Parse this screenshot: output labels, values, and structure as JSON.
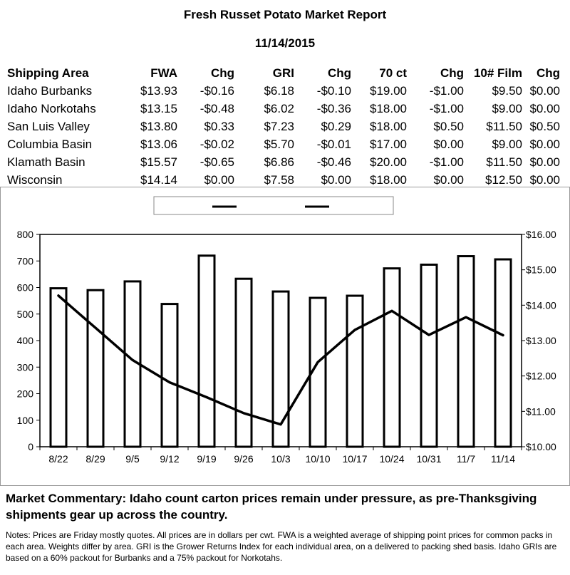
{
  "report": {
    "title": "Fresh Russet Potato Market Report",
    "date": "11/14/2015"
  },
  "table": {
    "headers": [
      "Shipping Area",
      "FWA",
      "Chg",
      "GRI",
      "Chg",
      "70 ct",
      "Chg",
      "10# Film",
      "Chg"
    ],
    "rows": [
      [
        "Idaho Burbanks",
        "$13.93",
        "-$0.16",
        "$6.18",
        "-$0.10",
        "$19.00",
        "-$1.00",
        "$9.50",
        "$0.00"
      ],
      [
        "Idaho Norkotahs",
        "$13.15",
        "-$0.48",
        "$6.02",
        "-$0.36",
        "$18.00",
        "-$1.00",
        "$9.00",
        "$0.00"
      ],
      [
        "San Luis Valley",
        "$13.80",
        "$0.33",
        "$7.23",
        "$0.29",
        "$18.00",
        "$0.50",
        "$11.50",
        "$0.50"
      ],
      [
        "Columbia Basin",
        "$13.06",
        "-$0.02",
        "$5.70",
        "-$0.01",
        "$17.00",
        "$0.00",
        "$9.00",
        "$0.00"
      ],
      [
        "Klamath Basin",
        "$15.57",
        "-$0.65",
        "$6.86",
        "-$0.46",
        "$20.00",
        "-$1.00",
        "$11.50",
        "$0.00"
      ],
      [
        "Wisconsin",
        "$14.14",
        "$0.00",
        "$7.58",
        "$0.00",
        "$18.00",
        "$0.00",
        "$12.50",
        "$0.00"
      ]
    ]
  },
  "chart_data": {
    "type": "bar",
    "title": "",
    "xlabel": "",
    "ylabel": "",
    "categories": [
      "8/22",
      "8/29",
      "9/5",
      "9/12",
      "9/19",
      "9/26",
      "10/3",
      "10/10",
      "10/17",
      "10/24",
      "10/31",
      "11/7",
      "11/14"
    ],
    "series": [
      {
        "type": "bar",
        "axis": "left",
        "values": [
          597,
          590,
          623,
          538,
          720,
          633,
          585,
          561,
          569,
          672,
          686,
          718,
          706
        ]
      },
      {
        "type": "line",
        "axis": "right",
        "values": [
          14.27,
          13.36,
          12.45,
          11.82,
          11.4,
          10.95,
          10.63,
          12.39,
          13.3,
          13.84,
          13.16,
          13.66,
          13.15
        ]
      }
    ],
    "ylim": [
      0,
      800
    ],
    "yticks": [
      0,
      100,
      200,
      300,
      400,
      500,
      600,
      700,
      800
    ],
    "y2lim": [
      10,
      16
    ],
    "y2ticks": [
      "$10.00",
      "$11.00",
      "$12.00",
      "$13.00",
      "$14.00",
      "$15.00",
      "$16.00"
    ],
    "legend": "top-center",
    "grid": false
  },
  "commentary": "Market Commentary: Idaho count carton prices remain under pressure, as pre-Thanksgiving shipments gear up across the country.",
  "notes": "Notes: Prices are Friday mostly quotes. All prices are in dollars per cwt. FWA is a weighted average of shipping point prices for  common packs in each area. Weights differ by area. GRI is the Grower Returns Index for each individual area, on a delivered to packing shed basis. Idaho GRIs are based on a 60% packout for Burbanks and a 75% packout for Norkotahs."
}
